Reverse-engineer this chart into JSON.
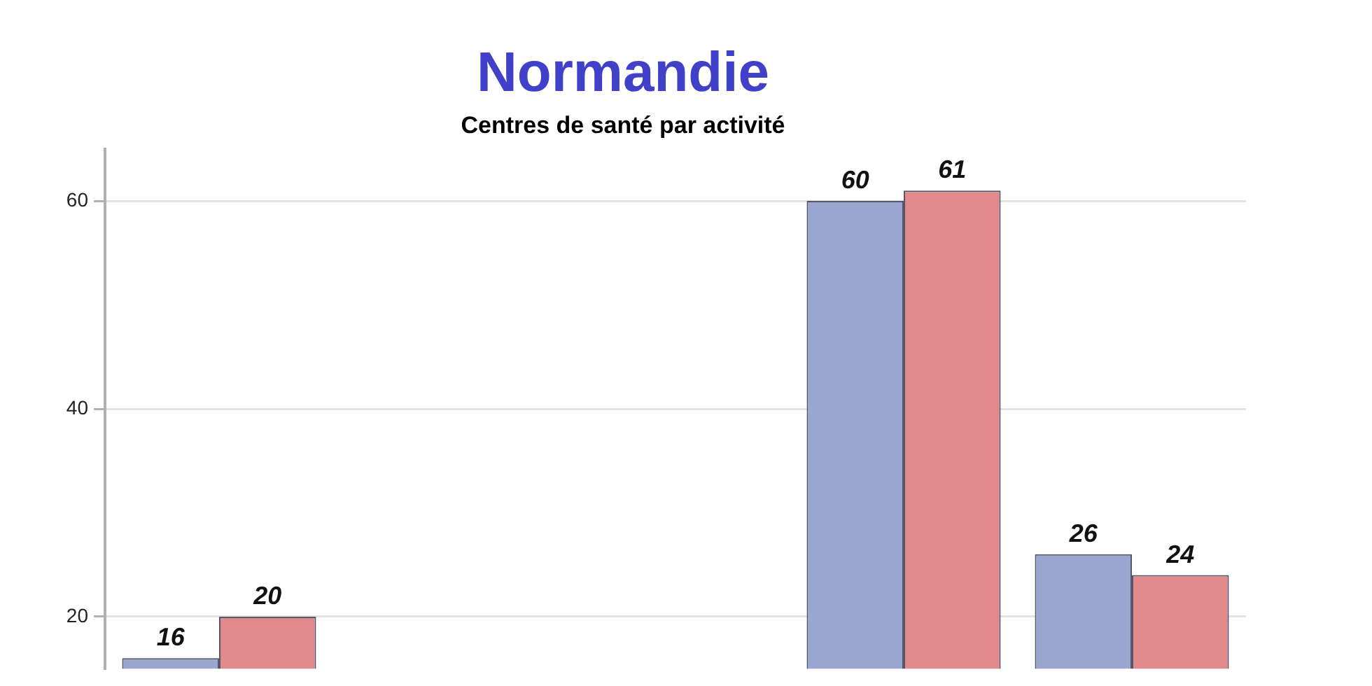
{
  "chart_data": {
    "type": "bar",
    "title": "Normandie",
    "subtitle": "Centres de santé par activité",
    "categories": [
      null,
      null,
      null,
      null,
      null
    ],
    "series": [
      {
        "color": "#9aa6cf",
        "values": [
          16,
          null,
          null,
          60,
          26
        ]
      },
      {
        "color": "#e08a8c",
        "values": [
          20,
          null,
          null,
          61,
          24
        ]
      }
    ],
    "ylim": [
      15,
      65
    ],
    "yticks": [
      20,
      40,
      60
    ],
    "grid": "y",
    "legend": false,
    "tick_labels": "y",
    "data_labels": true
  }
}
